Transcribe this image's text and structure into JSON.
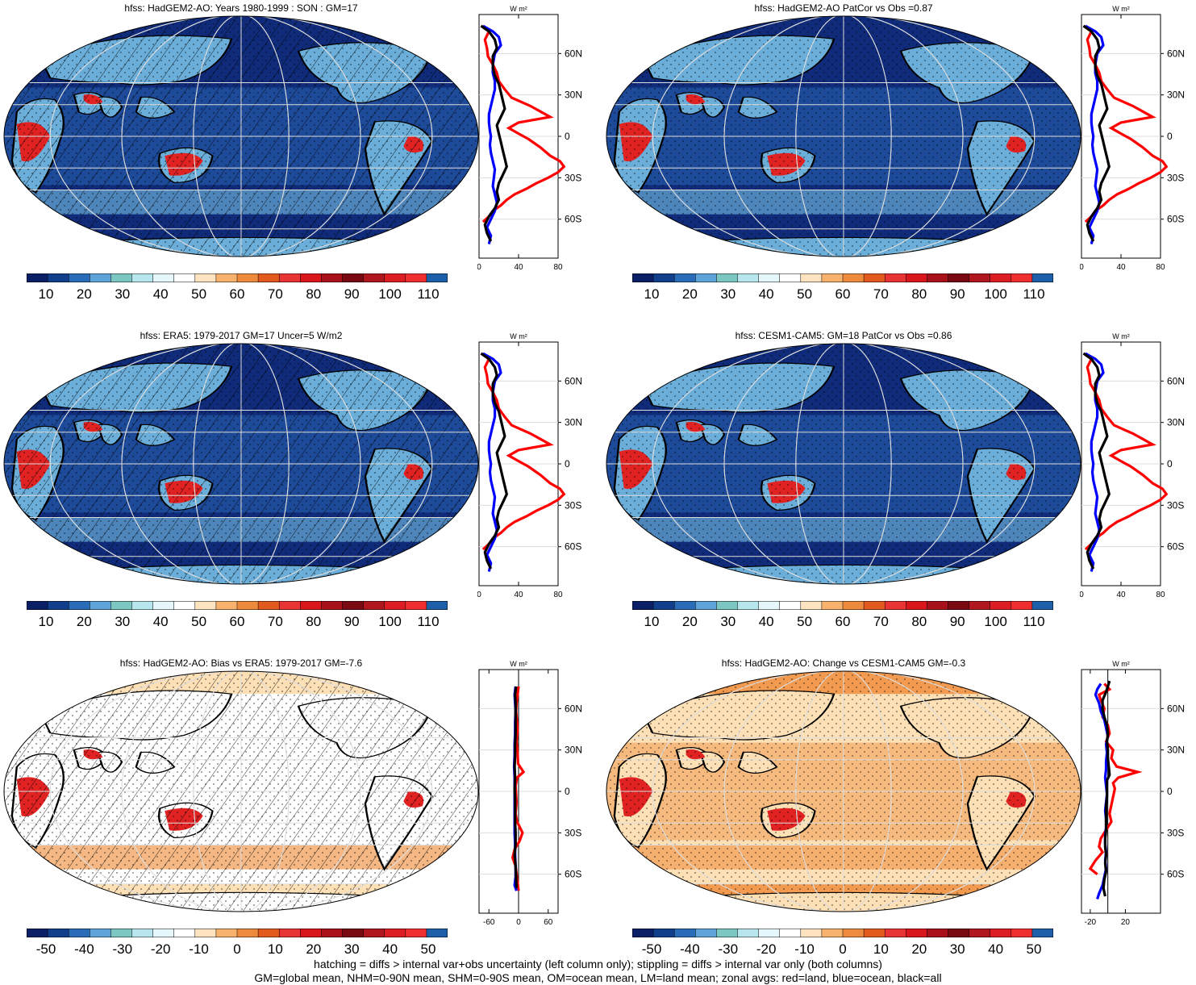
{
  "panels": [
    {
      "id": "top-left",
      "title": "hfss: HadGEM2-AO: Years 1980-1999 : SON : GM=17",
      "map": "abs",
      "hatch": true,
      "stipple": true,
      "colorbar": {
        "ticks": [
          "10",
          "20",
          "30",
          "40",
          "50",
          "60",
          "70",
          "80",
          "90",
          "100",
          "110"
        ]
      },
      "zonal": {
        "unit_label": "W m²",
        "xticks": [
          "0",
          "40",
          "80"
        ],
        "xrange": [
          0,
          80
        ],
        "yticks": [
          "60N",
          "30N",
          "0",
          "30S",
          "60S"
        ]
      }
    },
    {
      "id": "top-right",
      "title": "hfss: HadGEM2-AO PatCor vs Obs =0.87",
      "map": "abs",
      "hatch": false,
      "stipple": true,
      "colorbar": {
        "ticks": [
          "10",
          "20",
          "30",
          "40",
          "50",
          "60",
          "70",
          "80",
          "90",
          "100",
          "110"
        ]
      },
      "zonal": {
        "unit_label": "W m²",
        "xticks": [
          "0",
          "40",
          "80"
        ],
        "xrange": [
          0,
          80
        ],
        "yticks": [
          "60N",
          "30N",
          "0",
          "30S",
          "60S"
        ]
      }
    },
    {
      "id": "mid-left",
      "title": "hfss: ERA5: 1979-2017 GM=17 Uncer=5 W/m2",
      "map": "abs",
      "hatch": true,
      "stipple": true,
      "colorbar": {
        "ticks": [
          "10",
          "20",
          "30",
          "40",
          "50",
          "60",
          "70",
          "80",
          "90",
          "100",
          "110"
        ]
      },
      "zonal": {
        "unit_label": "W m²",
        "xticks": [
          "0",
          "40",
          "80"
        ],
        "xrange": [
          0,
          80
        ],
        "yticks": [
          "60N",
          "30N",
          "0",
          "30S",
          "60S"
        ]
      }
    },
    {
      "id": "mid-right",
      "title": "hfss: CESM1-CAM5: GM=18 PatCor vs Obs =0.86",
      "map": "abs",
      "hatch": false,
      "stipple": true,
      "colorbar": {
        "ticks": [
          "10",
          "20",
          "30",
          "40",
          "50",
          "60",
          "70",
          "80",
          "90",
          "100",
          "110"
        ]
      },
      "zonal": {
        "unit_label": "W m²",
        "xticks": [
          "0",
          "40",
          "80"
        ],
        "xrange": [
          0,
          80
        ],
        "yticks": [
          "60N",
          "30N",
          "0",
          "30S",
          "60S"
        ]
      }
    },
    {
      "id": "bot-left",
      "title": "hfss: HadGEM2-AO: Bias vs ERA5: 1979-2017  GM=-7.6",
      "map": "diff",
      "hatch": true,
      "stipple": true,
      "colorbar": {
        "ticks": [
          "-50",
          "-40",
          "-30",
          "-20",
          "-10",
          "0",
          "10",
          "20",
          "30",
          "40",
          "50"
        ]
      },
      "zonal": {
        "unit_label": "W m²",
        "xticks": [
          "-60",
          "0",
          "60"
        ],
        "xrange": [
          -80,
          80
        ],
        "yticks": [
          "60N",
          "30N",
          "0",
          "30S",
          "60S"
        ]
      }
    },
    {
      "id": "bot-right",
      "title": "hfss: HadGEM2-AO: Change vs CESM1-CAM5 GM=-0.3",
      "map": "change",
      "hatch": false,
      "stipple": true,
      "colorbar": {
        "ticks": [
          "-50",
          "-40",
          "-30",
          "-20",
          "-10",
          "0",
          "10",
          "20",
          "30",
          "40",
          "50"
        ]
      },
      "zonal": {
        "unit_label": "W m²",
        "xticks": [
          "-20",
          "20"
        ],
        "xrange": [
          -30,
          60
        ],
        "yticks": [
          "60N",
          "30N",
          "0",
          "30S",
          "60S"
        ]
      }
    }
  ],
  "colorbar_palette": [
    "#0b1f66",
    "#113f8c",
    "#2a6cb8",
    "#5ea3d9",
    "#7cc7c2",
    "#b7e6ee",
    "#e6f7fb",
    "#ffffff",
    "#fde3bf",
    "#f7b26e",
    "#ee8a3d",
    "#e35a1f",
    "#e83434",
    "#d9161c",
    "#a8101a",
    "#7a0a12",
    "#b0161d",
    "#dc1e24",
    "#ef2f2f",
    "#1d5fa8"
  ],
  "series_colors": {
    "land": "#ff0000",
    "ocean": "#0000ff",
    "all": "#000000"
  },
  "map_colors": {
    "deep_blue": "#0f2b7a",
    "mid_blue": "#2c66b2",
    "light_blue": "#6aaed9",
    "pale": "#c7e7f0",
    "red": "#e02222",
    "orange": "#f19a50",
    "peach": "#fde0b6"
  },
  "footer": {
    "line1": "hatching = diffs > internal var+obs uncertainty (left column only); stippling = diffs > internal var only (both columns)",
    "line2": "GM=global mean, NHM=0-90N mean, SHM=0-90S mean, OM=ocean mean, LM=land mean; zonal avgs: red=land, blue=ocean, black=all"
  },
  "zonal_profiles": {
    "abs_land": [
      [
        80,
        2
      ],
      [
        76,
        10
      ],
      [
        70,
        6
      ],
      [
        64,
        8
      ],
      [
        58,
        9
      ],
      [
        52,
        14
      ],
      [
        46,
        18
      ],
      [
        40,
        20
      ],
      [
        34,
        26
      ],
      [
        28,
        33
      ],
      [
        22,
        52
      ],
      [
        18,
        62
      ],
      [
        14,
        72
      ],
      [
        10,
        40
      ],
      [
        6,
        30
      ],
      [
        2,
        40
      ],
      [
        -2,
        50
      ],
      [
        -8,
        62
      ],
      [
        -14,
        72
      ],
      [
        -18,
        82
      ],
      [
        -22,
        86
      ],
      [
        -26,
        80
      ],
      [
        -30,
        70
      ],
      [
        -34,
        58
      ],
      [
        -38,
        48
      ],
      [
        -42,
        36
      ],
      [
        -46,
        28
      ],
      [
        -50,
        22
      ],
      [
        -54,
        14
      ],
      [
        -58,
        10
      ],
      [
        -62,
        4
      ]
    ],
    "abs_ocean": [
      [
        80,
        4
      ],
      [
        76,
        14
      ],
      [
        72,
        20
      ],
      [
        66,
        22
      ],
      [
        60,
        16
      ],
      [
        52,
        14
      ],
      [
        46,
        14
      ],
      [
        40,
        16
      ],
      [
        34,
        16
      ],
      [
        28,
        14
      ],
      [
        22,
        12
      ],
      [
        16,
        10
      ],
      [
        10,
        10
      ],
      [
        4,
        11
      ],
      [
        0,
        12
      ],
      [
        -6,
        11
      ],
      [
        -12,
        12
      ],
      [
        -18,
        14
      ],
      [
        -24,
        16
      ],
      [
        -30,
        15
      ],
      [
        -36,
        14
      ],
      [
        -42,
        16
      ],
      [
        -48,
        18
      ],
      [
        -54,
        16
      ],
      [
        -60,
        12
      ],
      [
        -66,
        8
      ],
      [
        -72,
        12
      ],
      [
        -78,
        10
      ]
    ],
    "abs_all": [
      [
        80,
        2
      ],
      [
        76,
        10
      ],
      [
        70,
        16
      ],
      [
        64,
        18
      ],
      [
        58,
        14
      ],
      [
        50,
        14
      ],
      [
        44,
        16
      ],
      [
        38,
        20
      ],
      [
        32,
        22
      ],
      [
        26,
        24
      ],
      [
        20,
        26
      ],
      [
        14,
        22
      ],
      [
        8,
        18
      ],
      [
        2,
        20
      ],
      [
        -4,
        22
      ],
      [
        -10,
        24
      ],
      [
        -16,
        26
      ],
      [
        -22,
        28
      ],
      [
        -28,
        24
      ],
      [
        -34,
        20
      ],
      [
        -40,
        18
      ],
      [
        -46,
        20
      ],
      [
        -52,
        16
      ],
      [
        -58,
        10
      ],
      [
        -64,
        6
      ],
      [
        -70,
        8
      ],
      [
        -76,
        12
      ]
    ],
    "diff_land": [
      [
        76,
        0
      ],
      [
        70,
        -2
      ],
      [
        64,
        -4
      ],
      [
        58,
        -5
      ],
      [
        50,
        -3
      ],
      [
        44,
        -2
      ],
      [
        36,
        -4
      ],
      [
        28,
        -2
      ],
      [
        20,
        -1
      ],
      [
        14,
        10
      ],
      [
        10,
        -3
      ],
      [
        4,
        -6
      ],
      [
        -2,
        -5
      ],
      [
        -8,
        -4
      ],
      [
        -16,
        -6
      ],
      [
        -22,
        -3
      ],
      [
        -30,
        8
      ],
      [
        -36,
        2
      ],
      [
        -42,
        -8
      ],
      [
        -48,
        -12
      ],
      [
        -54,
        -6
      ],
      [
        -60,
        -4
      ],
      [
        -66,
        -2
      ],
      [
        -72,
        0
      ]
    ],
    "diff_ocean": [
      [
        76,
        -6
      ],
      [
        70,
        -8
      ],
      [
        64,
        -7
      ],
      [
        58,
        -6
      ],
      [
        50,
        -7
      ],
      [
        42,
        -7
      ],
      [
        34,
        -8
      ],
      [
        26,
        -8
      ],
      [
        18,
        -9
      ],
      [
        10,
        -8
      ],
      [
        2,
        -8
      ],
      [
        -6,
        -8
      ],
      [
        -14,
        -8
      ],
      [
        -22,
        -8
      ],
      [
        -30,
        -8
      ],
      [
        -38,
        -7
      ],
      [
        -46,
        -7
      ],
      [
        -54,
        -6
      ],
      [
        -62,
        -6
      ],
      [
        -68,
        -8
      ],
      [
        -72,
        -4
      ]
    ],
    "diff_all": [
      [
        76,
        -5
      ],
      [
        70,
        -7
      ],
      [
        64,
        -6
      ],
      [
        58,
        -6
      ],
      [
        50,
        -6
      ],
      [
        42,
        -6
      ],
      [
        34,
        -7
      ],
      [
        26,
        -7
      ],
      [
        18,
        -8
      ],
      [
        10,
        -7
      ],
      [
        2,
        -8
      ],
      [
        -6,
        -7
      ],
      [
        -14,
        -7
      ],
      [
        -22,
        -7
      ],
      [
        -30,
        -6
      ],
      [
        -38,
        -6
      ],
      [
        -46,
        -8
      ],
      [
        -54,
        -6
      ],
      [
        -62,
        -5
      ],
      [
        -70,
        -4
      ]
    ],
    "chg_land": [
      [
        78,
        -4
      ],
      [
        74,
        2
      ],
      [
        70,
        -10
      ],
      [
        66,
        -8
      ],
      [
        60,
        -4
      ],
      [
        54,
        -6
      ],
      [
        48,
        0
      ],
      [
        42,
        2
      ],
      [
        36,
        -2
      ],
      [
        30,
        6
      ],
      [
        24,
        4
      ],
      [
        18,
        10
      ],
      [
        14,
        34
      ],
      [
        10,
        12
      ],
      [
        6,
        6
      ],
      [
        2,
        8
      ],
      [
        -4,
        6
      ],
      [
        -10,
        4
      ],
      [
        -16,
        2
      ],
      [
        -22,
        4
      ],
      [
        -28,
        -2
      ],
      [
        -34,
        -8
      ],
      [
        -40,
        -10
      ],
      [
        -44,
        -6
      ],
      [
        -50,
        -14
      ],
      [
        -56,
        -20
      ],
      [
        -60,
        -12
      ]
    ],
    "chg_ocean": [
      [
        78,
        -8
      ],
      [
        74,
        -12
      ],
      [
        70,
        -14
      ],
      [
        64,
        -10
      ],
      [
        58,
        -8
      ],
      [
        52,
        -4
      ],
      [
        46,
        -2
      ],
      [
        40,
        0
      ],
      [
        34,
        -2
      ],
      [
        28,
        -1
      ],
      [
        22,
        -2
      ],
      [
        16,
        -2
      ],
      [
        10,
        -3
      ],
      [
        4,
        -2
      ],
      [
        -2,
        -1
      ],
      [
        -8,
        -2
      ],
      [
        -14,
        -3
      ],
      [
        -20,
        -2
      ],
      [
        -26,
        -2
      ],
      [
        -32,
        -3
      ],
      [
        -38,
        -3
      ],
      [
        -44,
        -2
      ],
      [
        -50,
        -3
      ],
      [
        -56,
        -2
      ],
      [
        -62,
        -4
      ],
      [
        -68,
        -6
      ],
      [
        -74,
        -10
      ],
      [
        -78,
        -12
      ]
    ],
    "chg_all": [
      [
        80,
        2
      ],
      [
        76,
        0
      ],
      [
        72,
        -2
      ],
      [
        66,
        -6
      ],
      [
        60,
        -6
      ],
      [
        54,
        -4
      ],
      [
        48,
        -1
      ],
      [
        42,
        0
      ],
      [
        36,
        -1
      ],
      [
        30,
        0
      ],
      [
        24,
        0
      ],
      [
        18,
        1
      ],
      [
        12,
        2
      ],
      [
        8,
        -1
      ],
      [
        2,
        -1
      ],
      [
        -4,
        -1
      ],
      [
        -10,
        -2
      ],
      [
        -16,
        -2
      ],
      [
        -22,
        -2
      ],
      [
        -28,
        -2
      ],
      [
        -34,
        -3
      ],
      [
        -40,
        -3
      ],
      [
        -46,
        -2
      ],
      [
        -52,
        -3
      ],
      [
        -58,
        -2
      ],
      [
        -64,
        -4
      ],
      [
        -70,
        -5
      ],
      [
        -76,
        -3
      ]
    ]
  }
}
